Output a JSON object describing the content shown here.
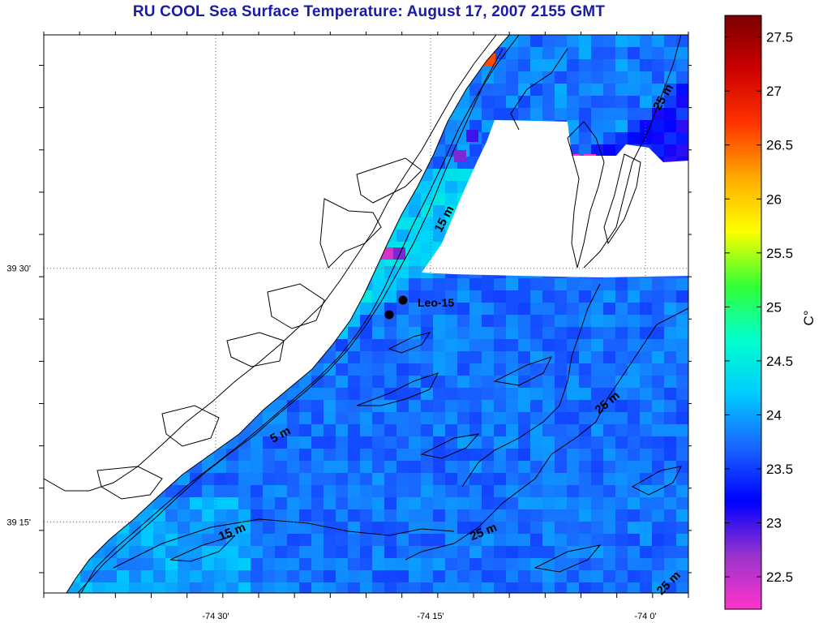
{
  "title": "RU COOL  Sea Surface Temperature:  August 17, 2007 2155 GMT",
  "axes": {
    "x_ticks": [
      {
        "label": "-74 30'",
        "lon": -74.5
      },
      {
        "label": "-74 15'",
        "lon": -74.25
      },
      {
        "label": "-74 0'",
        "lon": -74.0
      }
    ],
    "y_ticks": [
      {
        "label": "39 30'",
        "lat": 39.5
      },
      {
        "label": "39 15'",
        "lat": 39.25
      }
    ],
    "lon_range": [
      -74.7,
      -73.95
    ],
    "lat_range": [
      39.18,
      39.73
    ]
  },
  "colorbar": {
    "unit": "C°",
    "range": [
      22.2,
      27.7
    ],
    "labels": [
      "27.5",
      "27",
      "26.5",
      "26",
      "25.5",
      "25",
      "24.5",
      "24",
      "23.5",
      "23",
      "22.5"
    ],
    "colors": [
      "#ff33cc",
      "#9933cc",
      "#0000ff",
      "#1a66ff",
      "#00ccff",
      "#00ffcc",
      "#33ff33",
      "#ffff00",
      "#ffaa00",
      "#ff3300",
      "#cc0000",
      "#7a0000"
    ]
  },
  "isobaths": [
    {
      "label": "15 m"
    },
    {
      "label": "25 m"
    },
    {
      "label": "5 m"
    },
    {
      "label": "25 m"
    },
    {
      "label": "15 m"
    },
    {
      "label": "25 m"
    },
    {
      "label": "25 m"
    }
  ],
  "stations": [
    {
      "label": "Leo-15"
    }
  ],
  "colors": {
    "title": "#1a1aa8",
    "land_missing": "#ffffff",
    "coastline": "#000000"
  }
}
